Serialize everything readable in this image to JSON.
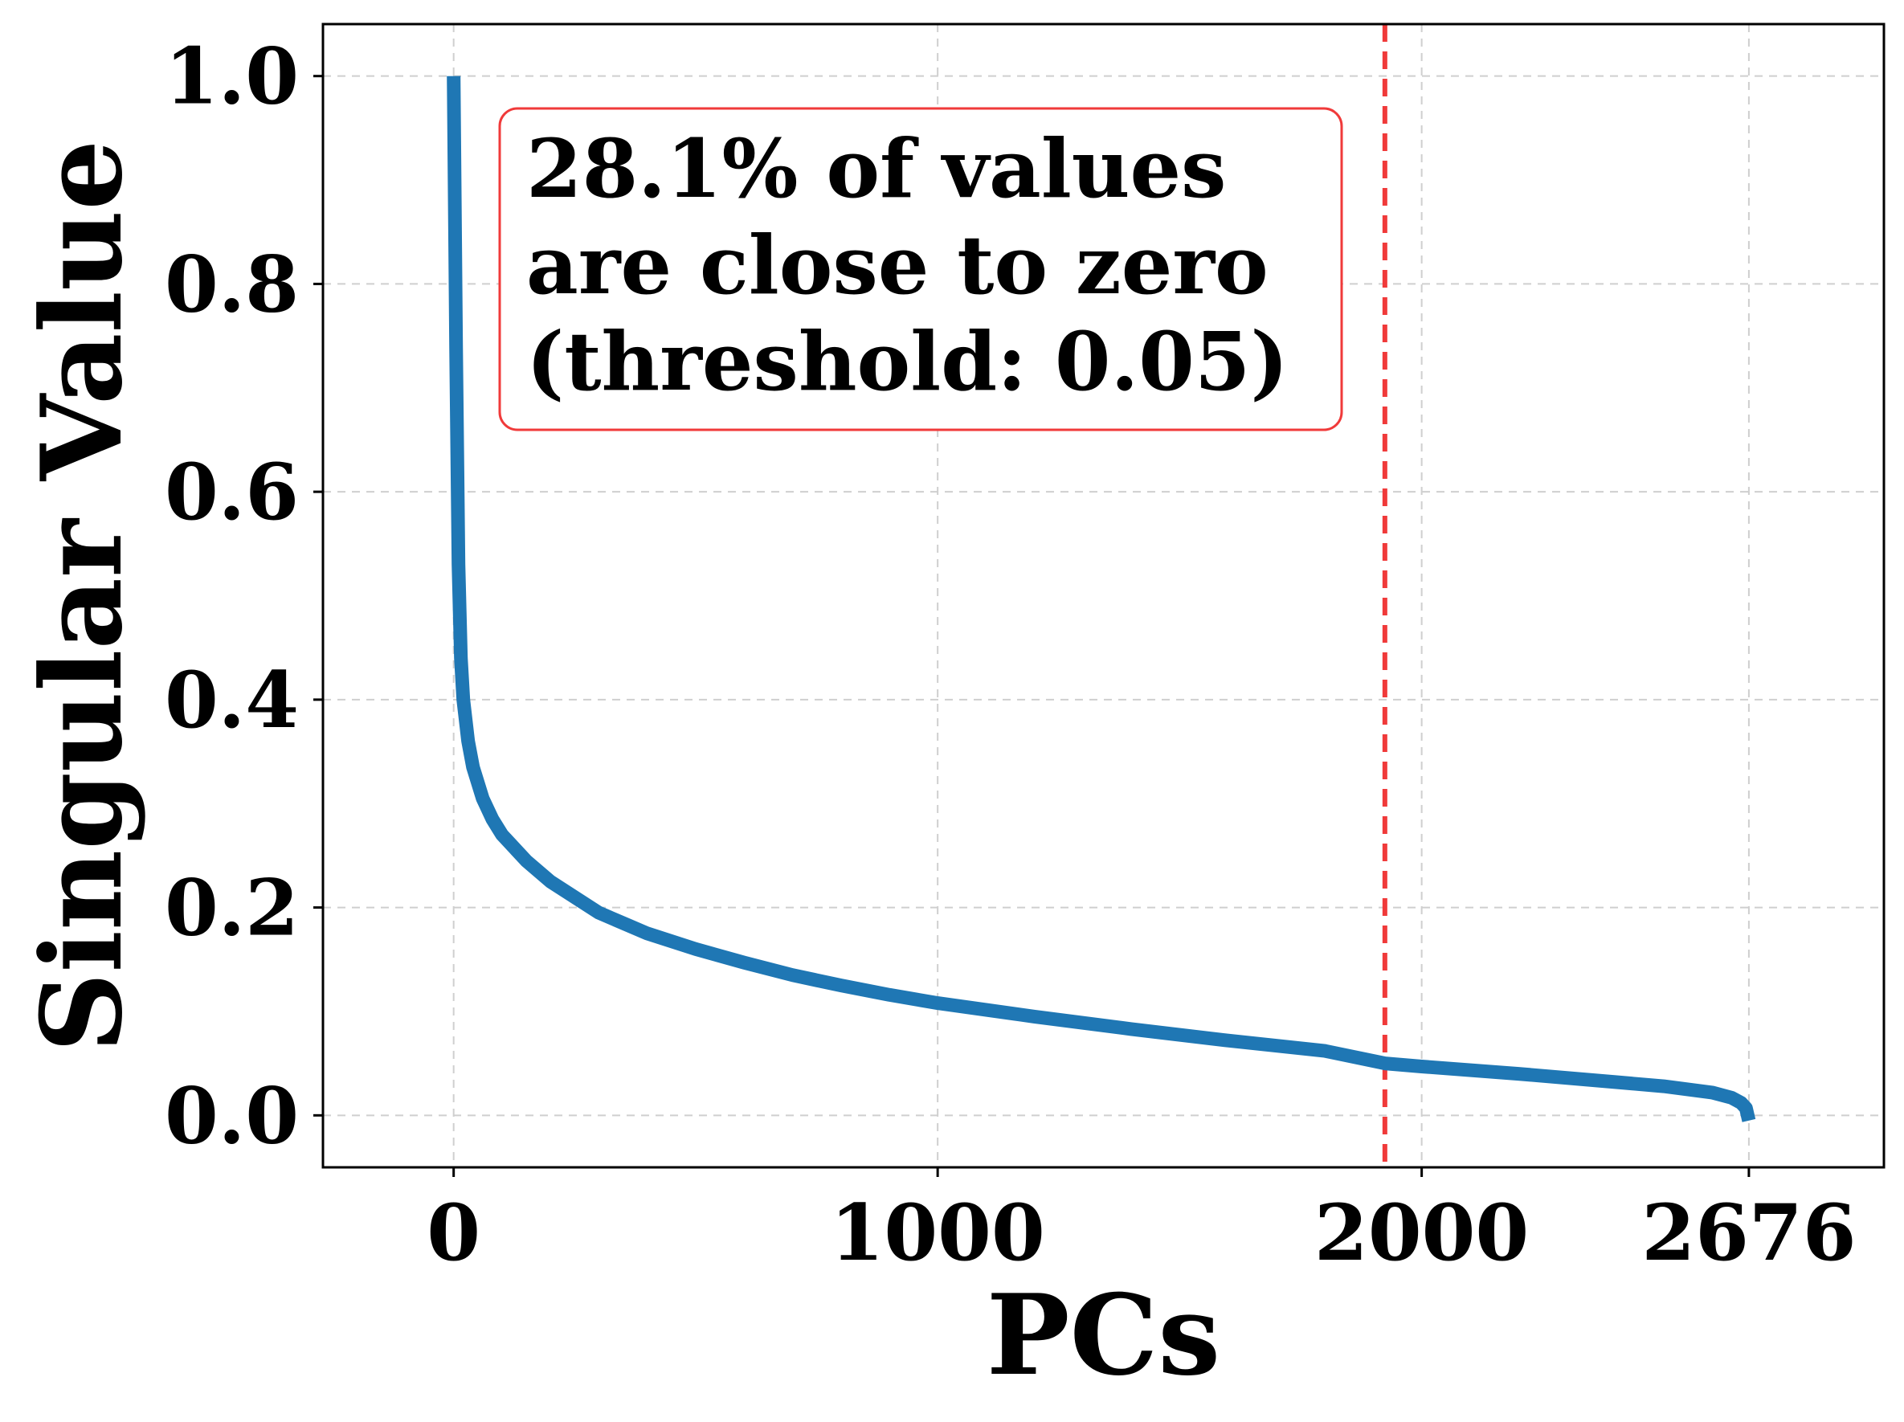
{
  "chart_data": {
    "type": "line",
    "xlabel": "PCs",
    "ylabel": "Singular Value",
    "xlim": [
      -270,
      2955
    ],
    "ylim": [
      -0.05,
      1.05
    ],
    "xticks": [
      0,
      1000,
      2000,
      2676
    ],
    "xtick_labels": [
      "0",
      "1000",
      "2000",
      "2676"
    ],
    "yticks": [
      0.0,
      0.2,
      0.4,
      0.6,
      0.8,
      1.0
    ],
    "ytick_labels": [
      "0.0",
      "0.2",
      "0.4",
      "0.6",
      "0.8",
      "1.0"
    ],
    "grid": true,
    "series": [
      {
        "name": "",
        "color": "#1f77b4",
        "x": [
          0,
          5,
          10,
          15,
          20,
          30,
          40,
          60,
          80,
          100,
          150,
          200,
          300,
          400,
          500,
          600,
          700,
          800,
          900,
          1000,
          1200,
          1400,
          1600,
          1800,
          1924,
          2000,
          2200,
          2400,
          2500,
          2600,
          2640,
          2660,
          2670,
          2676
        ],
        "y": [
          1.0,
          0.74,
          0.53,
          0.44,
          0.4,
          0.36,
          0.335,
          0.305,
          0.285,
          0.27,
          0.245,
          0.225,
          0.195,
          0.175,
          0.16,
          0.147,
          0.135,
          0.125,
          0.116,
          0.108,
          0.095,
          0.083,
          0.072,
          0.062,
          0.05,
          0.047,
          0.04,
          0.032,
          0.028,
          0.022,
          0.017,
          0.012,
          0.007,
          -0.005
        ]
      }
    ],
    "threshold_line": {
      "x": 1924,
      "color": "#f03a3a",
      "style": "dashed"
    },
    "annotation": {
      "lines": [
        "28.1% of values",
        "are close to zero",
        "(threshold: 0.05)"
      ],
      "border_color": "#f03a3a"
    }
  }
}
